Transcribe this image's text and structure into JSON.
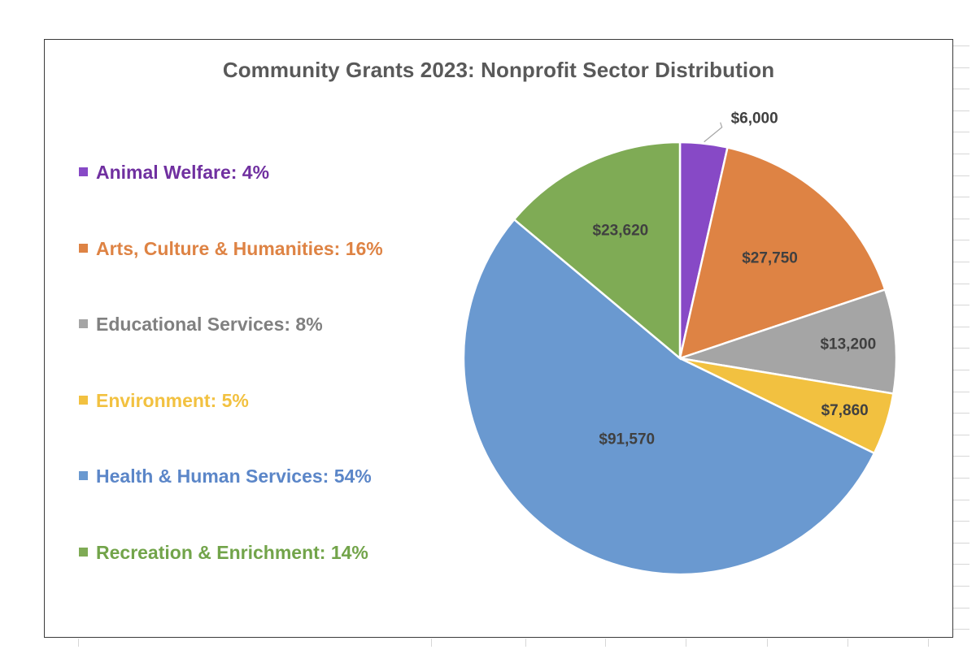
{
  "chart_data": {
    "type": "pie",
    "title": "Community Grants 2023:  Nonprofit Sector Distribution",
    "legend_position": "left",
    "slices": [
      {
        "name": "Animal Welfare",
        "legend_label": "Animal Welfare: 4%",
        "value": 6000,
        "label": "$6,000",
        "color": "#8749C6"
      },
      {
        "name": "Arts, Culture & Humanities",
        "legend_label": "Arts, Culture & Humanities: 16%",
        "value": 27750,
        "label": "$27,750",
        "color": "#DE8344"
      },
      {
        "name": "Educational Services",
        "legend_label": "Educational Services:  8%",
        "value": 13200,
        "label": "$13,200",
        "color": "#A5A5A5"
      },
      {
        "name": "Environment",
        "legend_label": "Environment: 5%",
        "value": 7860,
        "label": "$7,860",
        "color": "#F2C140"
      },
      {
        "name": "Health & Human Services",
        "legend_label": "Health & Human Services: 54%",
        "value": 91570,
        "label": "$91,570",
        "color": "#6A99D0"
      },
      {
        "name": "Recreation & Enrichment",
        "legend_label": "Recreation & Enrichment: 14%",
        "value": 23620,
        "label": "$23,620",
        "color": "#7FAB55"
      }
    ]
  },
  "legend_text_colors": [
    "#7030A0",
    "#DE8344",
    "#808080",
    "#F2C140",
    "#5B86C8",
    "#72A44A"
  ]
}
